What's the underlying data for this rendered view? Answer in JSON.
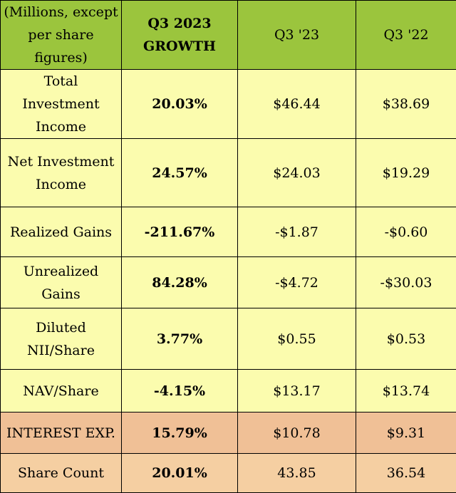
{
  "header": {
    "col1": "(Millions, except per share figures)",
    "col2": "Q3 2023 GROWTH",
    "col3": "Q3 '23",
    "col4": "Q3 '22"
  },
  "rows": [
    {
      "label": "Total Investment Income",
      "growth": "20.03%",
      "q3_23": "$46.44",
      "q3_22": "$38.69"
    },
    {
      "label": "Net Investment Income",
      "growth": "24.57%",
      "q3_23": "$24.03",
      "q3_22": "$19.29"
    },
    {
      "label": "Realized Gains",
      "growth": "-211.67%",
      "q3_23": "-$1.87",
      "q3_22": "-$0.60"
    },
    {
      "label": "Unrealized Gains",
      "growth": "84.28%",
      "q3_23": "-$4.72",
      "q3_22": "-$30.03"
    },
    {
      "label": "Diluted NII/Share",
      "growth": "3.77%",
      "q3_23": "$0.55",
      "q3_22": "$0.53"
    },
    {
      "label": "NAV/Share",
      "growth": "-4.15%",
      "q3_23": "$13.17",
      "q3_22": "$13.74"
    },
    {
      "label": "INTEREST EXP.",
      "growth": "15.79%",
      "q3_23": "$10.78",
      "q3_22": "$9.31"
    },
    {
      "label": "Share Count",
      "growth": "20.01%",
      "q3_23": "43.85",
      "q3_22": "36.54"
    }
  ],
  "colors": {
    "header_bg": "#9bc53d",
    "data_bg": "#fbfcae",
    "interest_bg": "#f0c096",
    "share_bg": "#f5cfa2"
  }
}
